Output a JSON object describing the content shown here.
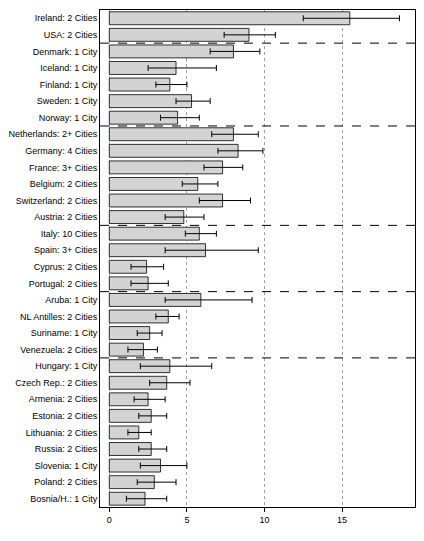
{
  "chart_data": {
    "type": "bar",
    "orientation": "horizontal",
    "categories": [
      "Ireland: 2 Cities",
      "USA: 2 Cities",
      "Denmark: 1 City",
      "Iceland: 1 City",
      "Finland: 1 City",
      "Sweden: 1 City",
      "Norway: 1 City",
      "Netherlands: 2+ Cities",
      "Germany: 4 Cities",
      "France: 3+ Cities",
      "Belgium: 2 Cities",
      "Switzerland: 2 Cities",
      "Austria: 2 Cities",
      "Italy: 10 Cities",
      "Spain: 3+ Cities",
      "Cyprus: 2 Cities",
      "Portugal: 2 Cities",
      "Aruba: 1 City",
      "NL Antilles: 2 Cities",
      "Suriname: 1 City",
      "Venezuela: 2 Cities",
      "Hungary: 1 City",
      "Czech Rep.: 2 Cities",
      "Armenia: 2 Cities",
      "Estonia: 2 Cities",
      "Lithuania: 2 Cities",
      "Russia: 2 Cities",
      "Slovenia: 1 City",
      "Poland: 2 Cities",
      "Bosnia/H.: 1 City"
    ],
    "values": [
      15.5,
      9.0,
      8.0,
      4.3,
      3.9,
      5.3,
      4.4,
      8.0,
      8.3,
      7.3,
      5.7,
      7.3,
      4.8,
      5.8,
      6.2,
      2.4,
      2.5,
      5.9,
      3.8,
      2.6,
      2.2,
      3.9,
      3.7,
      2.5,
      2.7,
      1.9,
      2.7,
      3.3,
      2.9,
      2.3
    ],
    "error_lower": [
      12.5,
      7.4,
      6.5,
      2.5,
      3.0,
      4.3,
      3.3,
      6.6,
      7.0,
      6.1,
      4.7,
      5.8,
      3.6,
      4.9,
      3.6,
      1.4,
      1.4,
      3.6,
      3.0,
      1.8,
      1.2,
      2.0,
      2.6,
      1.6,
      1.9,
      1.2,
      1.9,
      2.0,
      1.8,
      1.1
    ],
    "error_upper": [
      18.7,
      10.7,
      9.7,
      6.9,
      5.0,
      6.5,
      5.8,
      9.6,
      9.9,
      8.6,
      7.0,
      9.1,
      6.1,
      6.9,
      9.6,
      3.5,
      3.8,
      9.2,
      4.5,
      3.4,
      3.1,
      6.6,
      5.2,
      3.6,
      3.7,
      2.7,
      3.7,
      5.0,
      4.3,
      3.7
    ],
    "group_ends": [
      "USA: 2 Cities",
      "Norway: 1 City",
      "Austria: 2 Cities",
      "Portugal: 2 Cities",
      "Venezuela: 2 Cities"
    ],
    "color": "#d3d3d3",
    "xlim": [
      -0.6,
      19.7
    ],
    "xticks": [
      0,
      5,
      10,
      15
    ],
    "grid": true
  }
}
